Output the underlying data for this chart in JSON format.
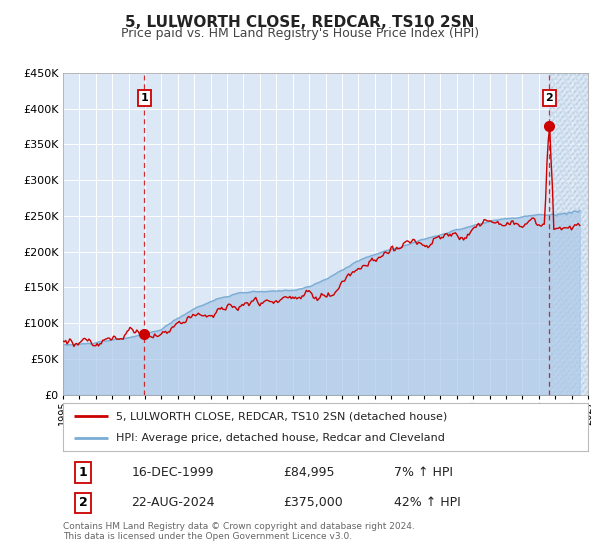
{
  "title": "5, LULWORTH CLOSE, REDCAR, TS10 2SN",
  "subtitle": "Price paid vs. HM Land Registry's House Price Index (HPI)",
  "ylim": [
    0,
    450000
  ],
  "yticks": [
    0,
    50000,
    100000,
    150000,
    200000,
    250000,
    300000,
    350000,
    400000,
    450000
  ],
  "xlim": [
    1995.0,
    2027.0
  ],
  "xticks": [
    1995,
    1996,
    1997,
    1998,
    1999,
    2000,
    2001,
    2002,
    2003,
    2004,
    2005,
    2006,
    2007,
    2008,
    2009,
    2010,
    2011,
    2012,
    2013,
    2014,
    2015,
    2016,
    2017,
    2018,
    2019,
    2020,
    2021,
    2022,
    2023,
    2024,
    2025,
    2026,
    2027
  ],
  "hpi_color": "#abc8e8",
  "hpi_line_color": "#7badd4",
  "price_color": "#cc0000",
  "plot_bg_color": "#dce8f5",
  "grid_color": "#ffffff",
  "hatch_color": "#c8d8ec",
  "sale1_x": 1999.96,
  "sale1_y": 84995,
  "sale1_label": "1",
  "sale1_date": "16-DEC-1999",
  "sale1_price": "£84,995",
  "sale1_hpi": "7% ↑ HPI",
  "sale2_x": 2024.64,
  "sale2_y": 375000,
  "sale2_label": "2",
  "sale2_date": "22-AUG-2024",
  "sale2_price": "£375,000",
  "sale2_hpi": "42% ↑ HPI",
  "legend_line1": "5, LULWORTH CLOSE, REDCAR, TS10 2SN (detached house)",
  "legend_line2": "HPI: Average price, detached house, Redcar and Cleveland",
  "footnote": "Contains HM Land Registry data © Crown copyright and database right 2024.\nThis data is licensed under the Open Government Licence v3.0.",
  "title_fontsize": 11,
  "subtitle_fontsize": 9
}
